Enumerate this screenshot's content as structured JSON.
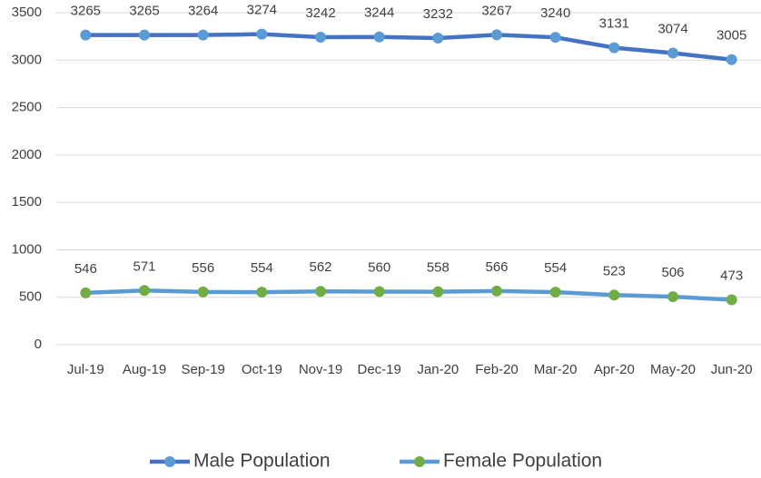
{
  "chart_data": {
    "type": "line",
    "categories": [
      "Jul-19",
      "Aug-19",
      "Sep-19",
      "Oct-19",
      "Nov-19",
      "Dec-19",
      "Jan-20",
      "Feb-20",
      "Mar-20",
      "Apr-20",
      "May-20",
      "Jun-20"
    ],
    "series": [
      {
        "name": "Male Population",
        "color": "#4472c4",
        "marker_color": "#5b9bd5",
        "values": [
          3265,
          3265,
          3264,
          3274,
          3242,
          3244,
          3232,
          3267,
          3240,
          3131,
          3074,
          3005
        ]
      },
      {
        "name": "Female Population",
        "color": "#5b9bd5",
        "marker_color": "#70ad47",
        "values": [
          546,
          571,
          556,
          554,
          562,
          560,
          558,
          566,
          554,
          523,
          506,
          473
        ]
      }
    ],
    "ylim": [
      0,
      3500
    ],
    "yticks": [
      0,
      500,
      1000,
      1500,
      2000,
      2500,
      3000,
      3500
    ],
    "grid": true,
    "legend": "bottom"
  }
}
